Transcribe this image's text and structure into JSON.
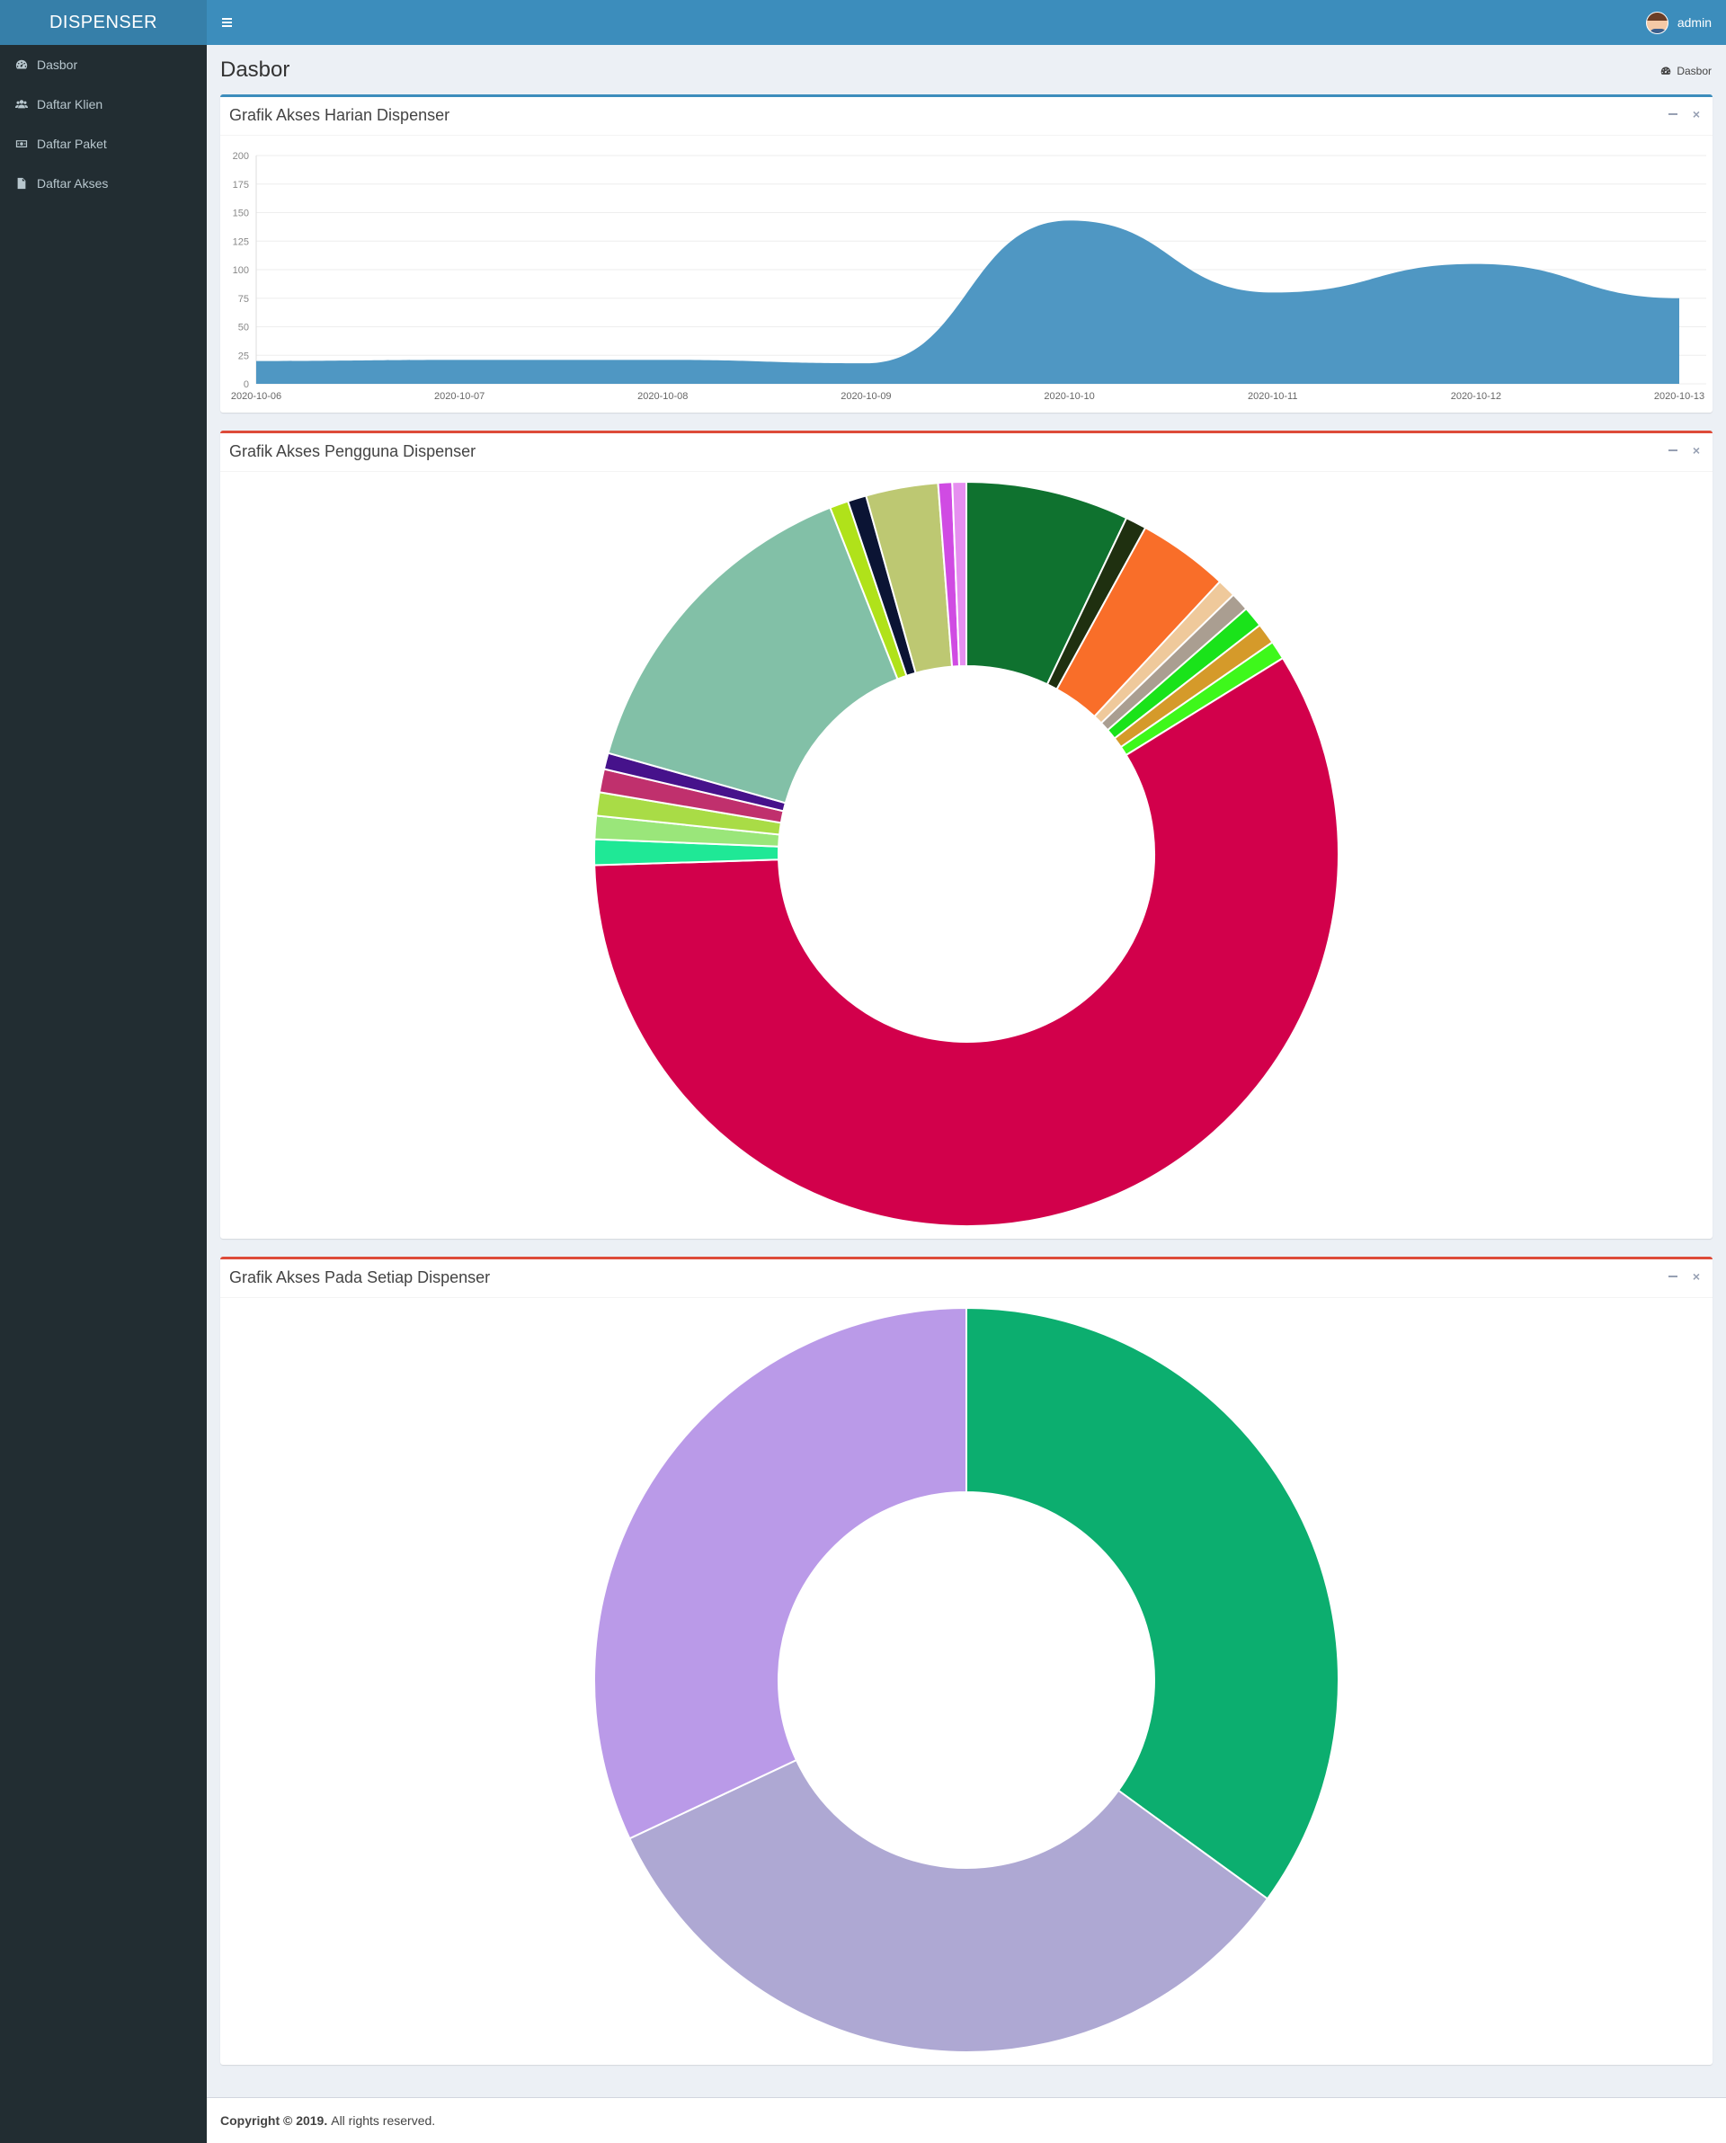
{
  "app": {
    "logo": "DISPENSER"
  },
  "sidebar": {
    "items": [
      {
        "label": "Dasbor",
        "icon": "dashboard-icon"
      },
      {
        "label": "Daftar Klien",
        "icon": "users-icon"
      },
      {
        "label": "Daftar Paket",
        "icon": "money-icon"
      },
      {
        "label": "Daftar Akses",
        "icon": "file-icon"
      }
    ]
  },
  "navbar": {
    "user_name": "admin"
  },
  "page": {
    "title": "Dasbor",
    "breadcrumb": "Dasbor"
  },
  "boxes": {
    "daily": {
      "title": "Grafik Akses Harian Dispenser"
    },
    "users": {
      "title": "Grafik Akses Pengguna Dispenser"
    },
    "dispensers": {
      "title": "Grafik Akses Pada Setiap Dispenser"
    }
  },
  "footer": {
    "copyright": "Copyright © 2019.",
    "rights": "All rights reserved."
  },
  "colors": {
    "accent": "#3c8dbc",
    "danger": "#dd4b39",
    "sidebar": "#222d32"
  },
  "chart_data": [
    {
      "type": "area",
      "x": [
        "2020-10-06",
        "2020-10-07",
        "2020-10-08",
        "2020-10-09",
        "2020-10-10",
        "2020-10-11",
        "2020-10-12",
        "2020-10-13"
      ],
      "values": [
        20,
        21,
        21,
        18,
        143,
        80,
        105,
        75
      ],
      "yticks": [
        "0",
        "25",
        "50",
        "75",
        "100",
        "125",
        "150",
        "175",
        "200"
      ],
      "ylim": [
        0,
        200
      ],
      "color": "#4f97c3"
    },
    {
      "type": "pie",
      "values": [
        7,
        0.9,
        3.9,
        0.8,
        0.8,
        0.9,
        0.9,
        0.8,
        57.7,
        1.1,
        1.0,
        1.0,
        1.0,
        0.7,
        14.5,
        0.8,
        0.8,
        3.1,
        0.6,
        0.6
      ],
      "colors": [
        "#0f722f",
        "#1f3010",
        "#f96e29",
        "#efc99b",
        "#aa9e91",
        "#1ae31a",
        "#d59a2a",
        "#3ef81b",
        "#d2004b",
        "#1fe896",
        "#9ae67a",
        "#a9dc46",
        "#c0306d",
        "#46128b",
        "#82c0a7",
        "#b0e21a",
        "#0b1434",
        "#bdc872",
        "#d04be3",
        "#e68ff0"
      ]
    },
    {
      "type": "pie",
      "values": [
        35,
        33,
        32
      ],
      "colors": [
        "#0cae6f",
        "#aea8d3",
        "#ba9ae8"
      ]
    }
  ]
}
